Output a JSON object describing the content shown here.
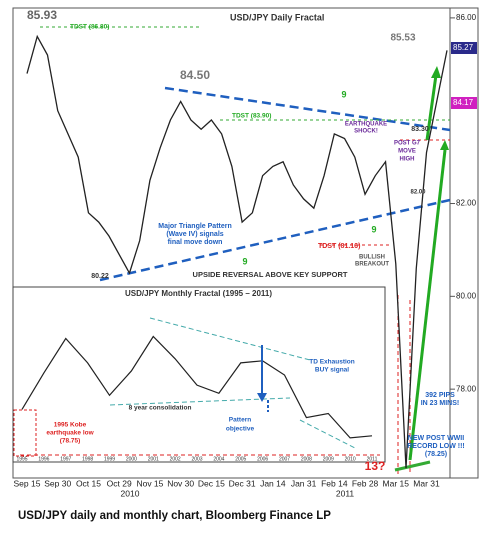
{
  "chart_data": [
    {
      "type": "line",
      "title": "USD/JPY Daily Fractal",
      "categories": [
        "Sep 15",
        null,
        null,
        "Sep 30",
        null,
        null,
        "Oct 15",
        null,
        null,
        "Oct 29",
        null,
        null,
        "Nov 15",
        null,
        null,
        "Nov 30",
        null,
        null,
        "Dec 15",
        null,
        null,
        "Dec 31",
        null,
        null,
        "Jan 14",
        null,
        null,
        "Jan 31",
        null,
        null,
        "Feb 14",
        null,
        null,
        "Feb 28",
        null,
        null,
        "Mar 15",
        null,
        null,
        "Mar 31",
        null,
        null
      ],
      "years": [
        "2010",
        "2011"
      ],
      "series": [
        {
          "name": "USD/JPY",
          "color": "#222222",
          "values": [
            84.8,
            85.6,
            85.2,
            84.0,
            83.5,
            83.0,
            81.8,
            81.6,
            81.3,
            80.9,
            80.5,
            81.2,
            82.5,
            83.2,
            83.8,
            84.2,
            83.8,
            83.6,
            83.8,
            83.5,
            82.8,
            81.6,
            81.8,
            82.6,
            82.8,
            82.9,
            82.4,
            82.1,
            81.9,
            82.6,
            83.5,
            83.4,
            83.0,
            82.2,
            82.6,
            82.9,
            80.7,
            76.3,
            80.6,
            83.1,
            84.2,
            85.3
          ]
        }
      ],
      "ylim": [
        76.15,
        86.17
      ],
      "yticks": [
        {
          "value": 86,
          "label": "86.00"
        },
        {
          "value": 82,
          "label": "82.00"
        },
        {
          "value": 80,
          "label": "80.00"
        },
        {
          "value": 78,
          "label": "78.00"
        }
      ],
      "price_tags": [
        "85.27",
        "84.17"
      ],
      "annotations": [
        "85.93",
        "TDST (86.80)",
        "84.50",
        "TDST (83.90)",
        "80.22",
        "85.53",
        "83.30",
        "82.00",
        "EARTHQUAKE",
        "SHOCK!",
        "POST G7",
        "MOVE",
        "HIGH",
        "Major Triangle Pattern",
        "(Wave IV) signals",
        "final move down",
        "TDST (81.16)",
        "BULLISH",
        "BREAKOUT",
        "UPSIDE REVERSAL ABOVE  KEY SUPPORT",
        "9",
        "9",
        "9",
        "392 PIPS",
        "IN 23 MINS!",
        "NEW POST WWII",
        "RECORD LOW !!!",
        "(78.25)",
        "13?"
      ]
    },
    {
      "type": "line",
      "title": "USD/JPY Monthly Fractal   (1995 – 2011)",
      "categories": [
        "1995",
        "1996",
        "1997",
        "1998",
        "1999",
        "2000",
        "2001",
        "2002",
        "2003",
        "2004",
        "2005",
        "2006",
        "2007",
        "2008",
        "2009",
        "2010",
        "2011"
      ],
      "series": [
        {
          "name": "USD/JPY monthly",
          "color": "#222222",
          "values": [
            95,
            113,
            130,
            118,
            102,
            114,
            131,
            120,
            107,
            103,
            118,
            119,
            112,
            91,
            93,
            81,
            82
          ]
        }
      ],
      "ylim": [
        75,
        150
      ],
      "annotations": [
        "1995 Kobe",
        "earthquake low",
        "(78.75)",
        "8 year consolidation",
        "Pattern",
        "objective",
        "TD Exhaustion",
        "BUY signal"
      ]
    }
  ],
  "caption": "USD/JPY daily and monthly chart, Bloomberg Finance LP"
}
